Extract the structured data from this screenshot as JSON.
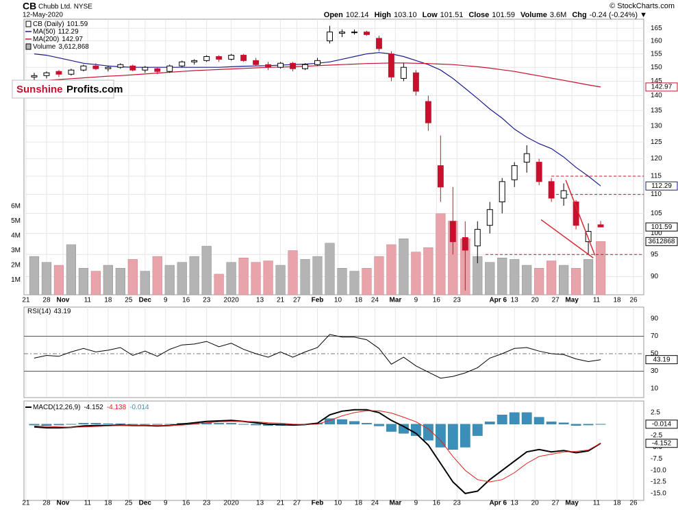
{
  "chart_data": [
    {
      "type": "candlestick",
      "title": "CB",
      "subtitle": "Chubb Ltd. NYSE",
      "date": "12-May-2020",
      "credit": "© StockCharts.com",
      "quote": [
        {
          "label": "Open",
          "text": "102.14"
        },
        {
          "label": "High",
          "text": "103.10"
        },
        {
          "label": "Low",
          "text": "101.51"
        },
        {
          "label": "Close",
          "text": "101.59"
        },
        {
          "label": "Volume",
          "text": "3.6M"
        },
        {
          "label": "Chg",
          "text": "-0.24 (-0.24%) ▼"
        }
      ],
      "logo": [
        "Sunshine",
        "Profits.com"
      ],
      "x": [
        2,
        5,
        8,
        11,
        14,
        17,
        20,
        23,
        26,
        29,
        32,
        35,
        38,
        41,
        44,
        47,
        50,
        53,
        56,
        59,
        62,
        65,
        68,
        71,
        74,
        77,
        80,
        83,
        86,
        89,
        92,
        95,
        98,
        101,
        104,
        107,
        110,
        113,
        116,
        119,
        122,
        125,
        128,
        131,
        134,
        137,
        140
      ],
      "xlim": [
        -0.5,
        150.5
      ],
      "xticks": [
        {
          "value": 0,
          "label": "21"
        },
        {
          "value": 5,
          "label": "28"
        },
        {
          "value": 9,
          "label": "Nov"
        },
        {
          "value": 15,
          "label": "11"
        },
        {
          "value": 20,
          "label": "18"
        },
        {
          "value": 25,
          "label": "25"
        },
        {
          "value": 29,
          "label": "Dec"
        },
        {
          "value": 34,
          "label": "9"
        },
        {
          "value": 39,
          "label": "16"
        },
        {
          "value": 44,
          "label": "23"
        },
        {
          "value": 50,
          "label": "2020"
        },
        {
          "value": 57,
          "label": "13"
        },
        {
          "value": 62,
          "label": "21"
        },
        {
          "value": 66,
          "label": "27"
        },
        {
          "value": 71,
          "label": "Feb"
        },
        {
          "value": 76,
          "label": "10"
        },
        {
          "value": 81,
          "label": "18"
        },
        {
          "value": 85,
          "label": "24"
        },
        {
          "value": 90,
          "label": "Mar"
        },
        {
          "value": 95,
          "label": "9"
        },
        {
          "value": 100,
          "label": "16"
        },
        {
          "value": 105,
          "label": "23"
        },
        {
          "value": 115,
          "label": "Apr 6"
        },
        {
          "value": 119,
          "label": "13"
        },
        {
          "value": 124,
          "label": "20"
        },
        {
          "value": 129,
          "label": "27"
        },
        {
          "value": 133,
          "label": "May"
        },
        {
          "value": 139,
          "label": "11"
        },
        {
          "value": 144,
          "label": "18"
        },
        {
          "value": 148,
          "label": "26"
        }
      ],
      "ylim": [
        86.1,
        168.7
      ],
      "log": true,
      "grid": true,
      "yticks": [
        90,
        95,
        100,
        105,
        110,
        115,
        120,
        125,
        130,
        135,
        140,
        145,
        150,
        155,
        160,
        165
      ],
      "y2lim": [
        0,
        18700000
      ],
      "y2ticks": [
        {
          "value": 1000000,
          "label": "1M"
        },
        {
          "value": 2000000,
          "label": "2M"
        },
        {
          "value": 3000000,
          "label": "3M"
        },
        {
          "value": 4000000,
          "label": "4M"
        },
        {
          "value": 5000000,
          "label": "5M"
        },
        {
          "value": 6000000,
          "label": "6M"
        }
      ],
      "series": [
        {
          "name": "CB (Daily)",
          "kind": "ohlc",
          "color": "#000000",
          "down_color": "#c8102e",
          "open": [
            146.5,
            147,
            148.5,
            147.5,
            149,
            150.5,
            149.5,
            150,
            150.5,
            149,
            149.5,
            148.5,
            150.5,
            152,
            152.5,
            154,
            153,
            154.5,
            152.5,
            151,
            150,
            151.5,
            149.5,
            151,
            160,
            163,
            163.5,
            163.5,
            161,
            155,
            146,
            148,
            138,
            118,
            103,
            99,
            97,
            102,
            108,
            114,
            119,
            119,
            113.5,
            109,
            108,
            98,
            102.14
          ],
          "high": [
            148,
            148.5,
            149,
            149.5,
            151,
            151.5,
            150.5,
            151.5,
            151,
            150.5,
            150,
            151,
            152.5,
            153,
            154.5,
            154.5,
            155,
            155,
            153.5,
            152,
            152,
            152,
            151.5,
            153.5,
            166,
            164.5,
            164.5,
            164,
            162,
            156,
            151.5,
            149,
            140,
            127,
            112,
            103,
            103,
            108,
            114.5,
            119,
            124,
            120,
            114.5,
            113,
            108.5,
            102.5,
            103.1
          ],
          "low": [
            145.5,
            146,
            146.5,
            147,
            148.5,
            149,
            148.5,
            149.5,
            148.5,
            148,
            147.5,
            148,
            150,
            151,
            152,
            152,
            152.5,
            152,
            150.5,
            149,
            149.5,
            148.5,
            149,
            150.5,
            159,
            161.5,
            162.5,
            162,
            156,
            145,
            145,
            140,
            128.5,
            108,
            95,
            87,
            93,
            100,
            105,
            112,
            116,
            112.5,
            108,
            107,
            101,
            95,
            101.51
          ],
          "close": [
            147,
            148,
            147.5,
            149,
            150.5,
            149.5,
            150,
            151,
            149,
            150,
            148.5,
            150.5,
            152,
            152.5,
            154,
            153,
            154.5,
            152.5,
            151,
            150,
            151.5,
            149.5,
            151,
            152.5,
            163.5,
            163.5,
            163.5,
            162.5,
            157,
            146.5,
            150,
            141.5,
            131,
            112,
            98,
            96,
            101,
            106,
            113.5,
            118,
            121.5,
            113.5,
            109,
            111,
            102,
            100.5,
            101.59
          ]
        },
        {
          "name": "MA(50)",
          "kind": "line",
          "color": "#1a1a8c",
          "values": [
            155,
            154.5,
            153.5,
            152.5,
            151.5,
            151,
            150.5,
            150.2,
            150,
            150,
            150,
            150,
            150,
            150,
            150,
            150,
            150.2,
            150.4,
            150.5,
            150.6,
            150.8,
            151,
            151.2,
            151.5,
            152,
            153,
            154,
            155,
            155.5,
            155,
            154,
            152.5,
            151,
            149,
            146,
            142.5,
            139,
            135.5,
            132.5,
            129,
            126.5,
            124.5,
            123,
            120.5,
            117.5,
            115,
            112.29
          ]
        },
        {
          "name": "MA(200)",
          "kind": "line",
          "color": "#c8102e",
          "values": [
            145,
            145.3,
            145.6,
            145.9,
            146.2,
            146.5,
            146.8,
            147,
            147.3,
            147.6,
            147.9,
            148.2,
            148.5,
            148.8,
            149,
            149.2,
            149.4,
            149.6,
            149.8,
            150,
            150.1,
            150.2,
            150.4,
            150.6,
            150.8,
            151,
            151.2,
            151.4,
            151.5,
            151.6,
            151.6,
            151.5,
            151.4,
            151.2,
            151,
            150.6,
            150.2,
            149.7,
            149.1,
            148.5,
            147.7,
            146.9,
            146.1,
            145.3,
            144.5,
            143.7,
            142.97
          ]
        },
        {
          "name": "Volume",
          "kind": "volume",
          "axis": "y2",
          "color": "#b4b4b4",
          "down_color": "#e9a3ab",
          "value_labels": [
            "3,612,868"
          ],
          "values": [
            2600000,
            2200000,
            2000000,
            3400000,
            1800000,
            1600000,
            2000000,
            1800000,
            2400000,
            1600000,
            2600000,
            2000000,
            2200000,
            2600000,
            3300000,
            1400000,
            2200000,
            2500000,
            2200000,
            2300000,
            2000000,
            3000000,
            2400000,
            2600000,
            3500000,
            1800000,
            1600000,
            1800000,
            2600000,
            3400000,
            3800000,
            2900000,
            3200000,
            5500000,
            5000000,
            3800000,
            2600000,
            2200000,
            2500000,
            2400000,
            2000000,
            1800000,
            2300000,
            2000000,
            1800000,
            2400000,
            3612868
          ]
        }
      ],
      "hlines": {
        "values": [
          115,
          110,
          95
        ],
        "color": "#c8102e"
      },
      "trendlines": {
        "color": "#d9262e",
        "lines": [
          {
            "x": [
              131.5,
              138.6
            ],
            "y": [
              113.9,
              94.8
            ]
          },
          {
            "x": [
              125.5,
              138.2
            ],
            "y": [
              103.4,
              94.2
            ]
          }
        ]
      }
    },
    {
      "type": "line",
      "title": "RSI(14)",
      "ylim": [
        -0.2,
        103.3
      ],
      "yticks": [
        10,
        30,
        50,
        70,
        90
      ],
      "levels": [
        30,
        70
      ],
      "midline": 50,
      "color": "#000000",
      "values": [
        45,
        48,
        47,
        52,
        56,
        52,
        54,
        57,
        48,
        53,
        47,
        55,
        60,
        61,
        64,
        58,
        62,
        55,
        50,
        46,
        52,
        46,
        52,
        57,
        72,
        69,
        69,
        66,
        56,
        38,
        46,
        36,
        29,
        22,
        24,
        28,
        34,
        45,
        50,
        56,
        57,
        53,
        50,
        49,
        44,
        41,
        43.19
      ]
    },
    {
      "type": "macd",
      "title": "MACD(12,26,9)",
      "ylim": [
        -16.5,
        5.0
      ],
      "yticks": [
        2.5,
        -2.5,
        {
          "value": -5,
          "label": "-5.0"
        },
        -7.5,
        {
          "value": -10,
          "label": "-10.0"
        },
        -12.5,
        {
          "value": -15,
          "label": "-15.0"
        }
      ],
      "series": [
        {
          "kind": "line",
          "color": "#000000",
          "values": [
            -0.6,
            -0.8,
            -0.8,
            -0.7,
            -0.4,
            -0.3,
            -0.3,
            -0.2,
            -0.3,
            -0.3,
            -0.4,
            -0.3,
            0,
            0.3,
            0.6,
            0.7,
            0.8,
            0.6,
            0.3,
            0,
            -0.1,
            -0.2,
            -0.1,
            0.2,
            2,
            2.8,
            3.1,
            3.1,
            2.5,
            0.8,
            -0.5,
            -2,
            -4.5,
            -8.5,
            -12.5,
            -15,
            -14.5,
            -12,
            -10,
            -8,
            -6,
            -5.5,
            -6,
            -5.7,
            -6.2,
            -5.8,
            -4.152
          ]
        },
        {
          "kind": "line",
          "color": "#e0201c",
          "values": [
            -0.4,
            -0.5,
            -0.6,
            -0.7,
            -0.6,
            -0.5,
            -0.4,
            -0.3,
            -0.3,
            -0.3,
            -0.3,
            -0.3,
            -0.2,
            0,
            0.3,
            0.5,
            0.6,
            0.6,
            0.5,
            0.3,
            0.2,
            0,
            -0.1,
            0,
            0.8,
            1.8,
            2.5,
            2.9,
            2.9,
            2.4,
            1.5,
            0.5,
            -1,
            -3.5,
            -7,
            -10,
            -12,
            -12.5,
            -12,
            -10.5,
            -8.5,
            -7,
            -6.5,
            -6,
            -5.9,
            -5.6,
            -4.138
          ]
        },
        {
          "kind": "histogram",
          "color": "#3b8fb8",
          "values": [
            -0.2,
            -0.3,
            -0.2,
            0,
            0.2,
            0.2,
            0.1,
            0.1,
            0,
            0,
            -0.1,
            0,
            0.2,
            0.3,
            0.3,
            0.2,
            0.2,
            0,
            -0.2,
            -0.3,
            -0.3,
            -0.2,
            0,
            0.2,
            1.2,
            1,
            0.6,
            0.2,
            -0.4,
            -1.6,
            -2,
            -2.5,
            -3.5,
            -5,
            -5.5,
            -5,
            -2.5,
            0.5,
            2,
            2.5,
            2.5,
            1.5,
            0.5,
            0.3,
            -0.3,
            -0.2,
            -0.014
          ]
        }
      ]
    }
  ]
}
